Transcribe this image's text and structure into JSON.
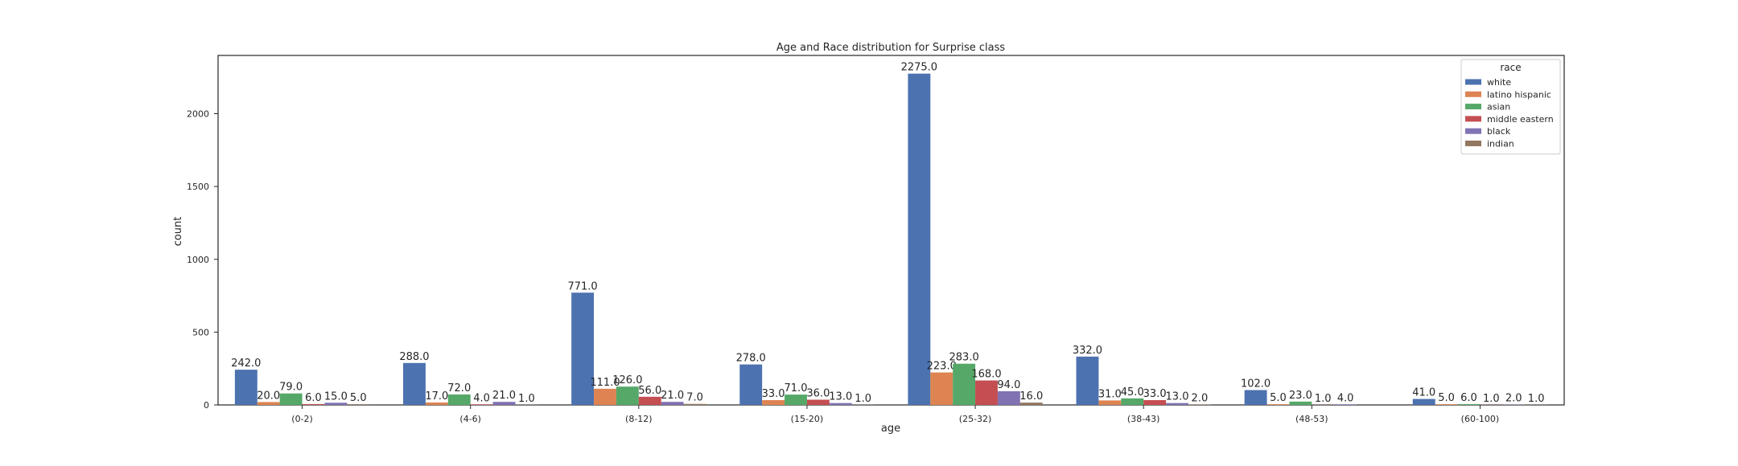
{
  "chart_data": {
    "type": "bar",
    "title": "Age and Race distribution for Surprise class",
    "xlabel": "age",
    "ylabel": "count",
    "ylim": [
      0,
      2400
    ],
    "yticks": [
      0,
      500,
      1000,
      1500,
      2000
    ],
    "grid": false,
    "legend_title": "race",
    "legend_position": "top-right",
    "categories": [
      "(0-2)",
      "(4-6)",
      "(8-12)",
      "(15-20)",
      "(25-32)",
      "(38-43)",
      "(48-53)",
      "(60-100)"
    ],
    "series": [
      {
        "name": "white",
        "color": "#4c72b0",
        "values": [
          242,
          288,
          771,
          278,
          2275,
          332,
          102,
          41
        ],
        "labels": [
          "242.0",
          "288.0",
          "771.0",
          "278.0",
          "2275.0",
          "332.0",
          "102.0",
          "41.0"
        ]
      },
      {
        "name": "latino hispanic",
        "color": "#dd8452",
        "values": [
          20,
          17,
          111,
          33,
          223,
          31,
          5,
          5
        ],
        "labels": [
          "20.0",
          "17.0",
          "111.0",
          "33.0",
          "223.0",
          "31.0",
          "5.0",
          "5.0"
        ]
      },
      {
        "name": "asian",
        "color": "#55a868",
        "values": [
          79,
          72,
          126,
          71,
          283,
          45,
          23,
          6
        ],
        "labels": [
          "79.0",
          "72.0",
          "126.0",
          "71.0",
          "283.0",
          "45.0",
          "23.0",
          "6.0"
        ]
      },
      {
        "name": "middle eastern",
        "color": "#c44e52",
        "values": [
          6,
          4,
          56,
          36,
          168,
          33,
          1,
          1
        ],
        "labels": [
          "6.0",
          "4.0",
          "56.0",
          "36.0",
          "168.0",
          "33.0",
          "1.0",
          "1.0"
        ]
      },
      {
        "name": "black",
        "color": "#8172b3",
        "values": [
          15,
          21,
          21,
          13,
          94,
          13,
          4,
          2
        ],
        "labels": [
          "15.0",
          "21.0",
          "21.0",
          "13.0",
          "94.0",
          "13.0",
          "4.0",
          "2.0"
        ]
      },
      {
        "name": "indian",
        "color": "#937860",
        "values": [
          5,
          1,
          7,
          1,
          16,
          2,
          null,
          1
        ],
        "labels": [
          "5.0",
          "1.0",
          "7.0",
          "1.0",
          "16.0",
          "2.0",
          null,
          "1.0"
        ]
      }
    ]
  }
}
